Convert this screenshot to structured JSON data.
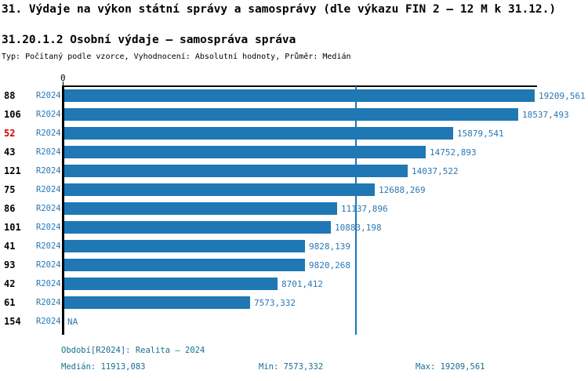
{
  "header": {
    "title": "31. Výdaje na výkon státní správy a samosprávy (dle výkazu FIN 2 – 12 M k 31.12.)",
    "subtitle": "31.20.1.2 Osobní výdaje – samospráva správa",
    "meta": "Typ: Počítaný podle vzorce, Vyhodnocení: Absolutní hodnoty, Průměr: Medián"
  },
  "chart_data": {
    "type": "bar",
    "orientation": "horizontal",
    "zero_label": "0",
    "axis_max": 19209.561,
    "median_value": 11913.083,
    "highlight_category": "52",
    "categories": [
      "88",
      "106",
      "52",
      "43",
      "121",
      "75",
      "86",
      "101",
      "41",
      "93",
      "42",
      "61",
      "154"
    ],
    "rows": [
      {
        "num": "88",
        "period": "R2024",
        "value": 19209.561,
        "display": "19209,561"
      },
      {
        "num": "106",
        "period": "R2024",
        "value": 18537.493,
        "display": "18537,493"
      },
      {
        "num": "52",
        "period": "R2024",
        "value": 15879.541,
        "display": "15879,541"
      },
      {
        "num": "43",
        "period": "R2024",
        "value": 14752.893,
        "display": "14752,893"
      },
      {
        "num": "121",
        "period": "R2024",
        "value": 14037.522,
        "display": "14037,522"
      },
      {
        "num": "75",
        "period": "R2024",
        "value": 12688.269,
        "display": "12688,269"
      },
      {
        "num": "86",
        "period": "R2024",
        "value": 11137.896,
        "display": "11137,896"
      },
      {
        "num": "101",
        "period": "R2024",
        "value": 10883.198,
        "display": "10883,198"
      },
      {
        "num": "41",
        "period": "R2024",
        "value": 9828.139,
        "display": "9828,139"
      },
      {
        "num": "93",
        "period": "R2024",
        "value": 9820.268,
        "display": "9820,268"
      },
      {
        "num": "42",
        "period": "R2024",
        "value": 8701.412,
        "display": "8701,412"
      },
      {
        "num": "61",
        "period": "R2024",
        "value": 7573.332,
        "display": "7573,332"
      },
      {
        "num": "154",
        "period": "R2024",
        "value": null,
        "display": "NA"
      }
    ],
    "colors": {
      "bar": "#1f77b4",
      "label_blue": "#2878b5",
      "footer_teal": "#17708f",
      "highlight_red": "#cc0000",
      "axis": "#000000"
    },
    "legend_position": "none",
    "grid": false
  },
  "footer": {
    "period_line": "Období[R2024]: Realita – 2024",
    "median": "Medián: 11913,083",
    "min": "Min: 7573,332",
    "max": "Max: 19209,561"
  }
}
